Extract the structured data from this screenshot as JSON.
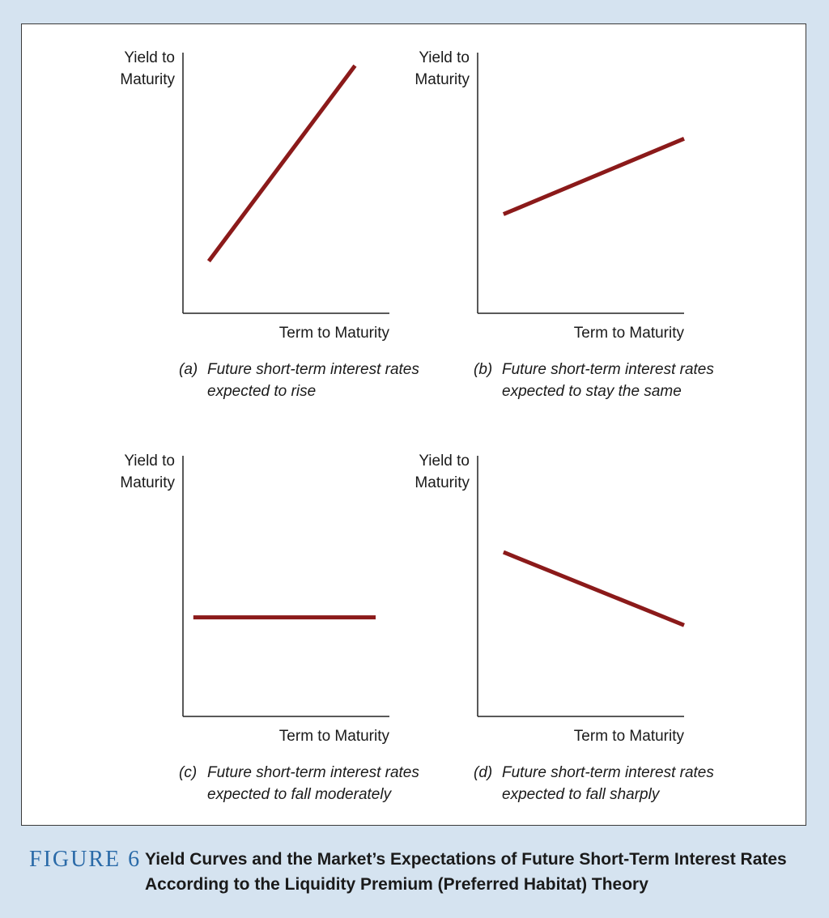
{
  "chart_data": [
    {
      "type": "line",
      "panel_id": "a",
      "ylabel_line1": "Yield to",
      "ylabel_line2": "Maturity",
      "xlabel": "Term to Maturity",
      "caption_letter": "(a)",
      "caption_line1": "Future short-term interest rates",
      "caption_line2": "expected to rise",
      "x": [
        0.15,
        1.0
      ],
      "y": [
        0.2,
        0.95
      ],
      "xlim": [
        0,
        1.2
      ],
      "ylim": [
        0,
        1
      ],
      "color": "#8b1a1a"
    },
    {
      "type": "line",
      "panel_id": "b",
      "ylabel_line1": "Yield to",
      "ylabel_line2": "Maturity",
      "xlabel": "Term to Maturity",
      "caption_letter": "(b)",
      "caption_line1": "Future short-term interest rates",
      "caption_line2": "expected to stay the same",
      "x": [
        0.15,
        1.2
      ],
      "y": [
        0.38,
        0.67
      ],
      "xlim": [
        0,
        1.2
      ],
      "ylim": [
        0,
        1
      ],
      "color": "#8b1a1a"
    },
    {
      "type": "line",
      "panel_id": "c",
      "ylabel_line1": "Yield to",
      "ylabel_line2": "Maturity",
      "xlabel": "Term to Maturity",
      "caption_letter": "(c)",
      "caption_line1": "Future short-term interest rates",
      "caption_line2": "expected to fall moderately",
      "x": [
        0.06,
        1.12
      ],
      "y": [
        0.38,
        0.38
      ],
      "xlim": [
        0,
        1.2
      ],
      "ylim": [
        0,
        1
      ],
      "color": "#8b1a1a"
    },
    {
      "type": "line",
      "panel_id": "d",
      "ylabel_line1": "Yield to",
      "ylabel_line2": "Maturity",
      "xlabel": "Term to Maturity",
      "caption_letter": "(d)",
      "caption_line1": "Future short-term interest rates",
      "caption_line2": "expected to fall sharply",
      "x": [
        0.15,
        1.2
      ],
      "y": [
        0.63,
        0.35
      ],
      "xlim": [
        0,
        1.2
      ],
      "ylim": [
        0,
        1
      ],
      "color": "#8b1a1a"
    }
  ],
  "figure": {
    "label": "FIGURE 6",
    "title_line1": "Yield Curves and the Market’s Expectations of Future Short-Term Interest Rates",
    "title_line2": "According to the Liquidity Premium (Preferred Habitat) Theory"
  },
  "colors": {
    "background": "#d5e3f0",
    "panel": "#ffffff",
    "curve": "#8b1a1a",
    "figure_label": "#2a6aa8"
  }
}
